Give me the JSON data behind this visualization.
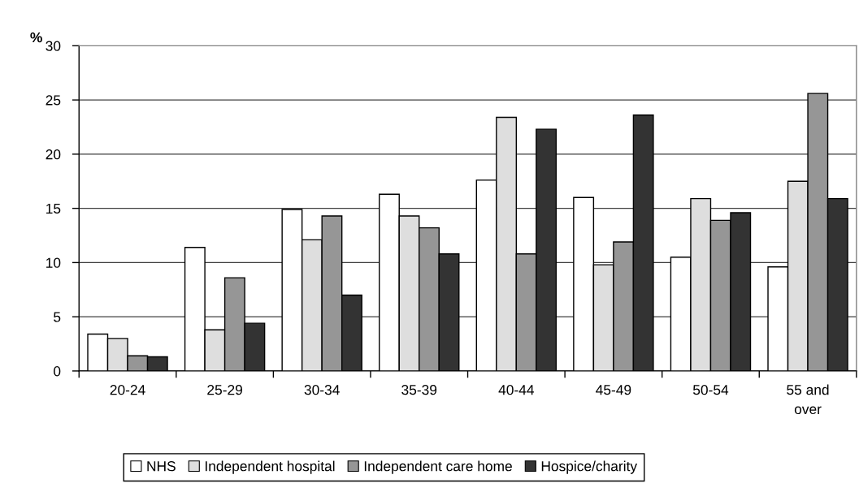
{
  "chart_data": {
    "type": "bar",
    "ylabel": "%",
    "categories": [
      "20-24",
      "25-29",
      "30-34",
      "35-39",
      "40-44",
      "45-49",
      "50-54",
      "55 and\nover"
    ],
    "series": [
      {
        "name": "NHS",
        "color": "#ffffff",
        "values": [
          3.4,
          11.4,
          14.9,
          16.3,
          17.6,
          16.0,
          10.5,
          9.6
        ]
      },
      {
        "name": "Independent hospital",
        "color": "#dedede",
        "values": [
          3.0,
          3.8,
          12.1,
          14.3,
          23.4,
          9.8,
          15.9,
          17.5
        ]
      },
      {
        "name": "Independent care home",
        "color": "#969696",
        "values": [
          1.4,
          8.6,
          14.3,
          13.2,
          10.8,
          11.9,
          13.9,
          25.6
        ]
      },
      {
        "name": "Hospice/charity",
        "color": "#333333",
        "values": [
          1.3,
          4.4,
          7.0,
          10.8,
          22.3,
          23.6,
          14.6,
          15.9
        ]
      }
    ],
    "ylim": [
      0,
      30
    ],
    "yticks": [
      0,
      5,
      10,
      15,
      20,
      25,
      30
    ],
    "grid": "y",
    "legend": "bottom"
  }
}
